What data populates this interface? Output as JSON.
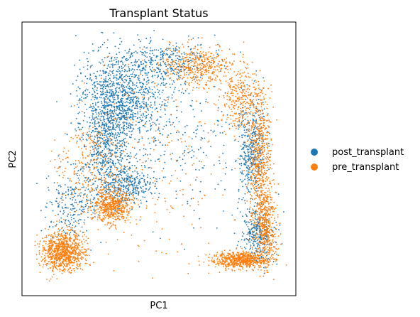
{
  "chart_data": {
    "type": "scatter",
    "title": "Transplant Status",
    "xlabel": "PC1",
    "ylabel": "PC2",
    "x_ticks": false,
    "y_ticks": false,
    "legend_position": "right",
    "series": [
      {
        "name": "post_transplant",
        "color": "#1f77b4",
        "clusters": [
          {
            "cx": 0.31,
            "cy": 0.38,
            "sx": 0.05,
            "sy": 0.13,
            "n": 950
          },
          {
            "cx": 0.39,
            "cy": 0.28,
            "sx": 0.07,
            "sy": 0.07,
            "n": 650
          },
          {
            "cx": 0.38,
            "cy": 0.6,
            "sx": 0.05,
            "sy": 0.04,
            "n": 350
          },
          {
            "cx": 0.18,
            "cy": 0.67,
            "sx": 0.045,
            "sy": 0.06,
            "n": 230
          },
          {
            "cx": 0.5,
            "cy": 0.15,
            "sx": 0.09,
            "sy": 0.04,
            "n": 380
          },
          {
            "cx": 0.84,
            "cy": 0.46,
            "sx": 0.025,
            "sy": 0.09,
            "n": 420
          },
          {
            "cx": 0.86,
            "cy": 0.78,
            "sx": 0.03,
            "sy": 0.05,
            "n": 330
          },
          {
            "cx": 0.57,
            "cy": 0.42,
            "sx": 0.13,
            "sy": 0.15,
            "n": 260
          }
        ]
      },
      {
        "name": "pre_transplant",
        "color": "#ff7f0e",
        "clusters": [
          {
            "cx": 0.15,
            "cy": 0.84,
            "sx": 0.04,
            "sy": 0.035,
            "n": 900
          },
          {
            "cx": 0.33,
            "cy": 0.67,
            "sx": 0.035,
            "sy": 0.03,
            "n": 550
          },
          {
            "cx": 0.8,
            "cy": 0.87,
            "sx": 0.05,
            "sy": 0.015,
            "n": 650
          },
          {
            "cx": 0.89,
            "cy": 0.75,
            "sx": 0.02,
            "sy": 0.07,
            "n": 420
          },
          {
            "cx": 0.87,
            "cy": 0.52,
            "sx": 0.02,
            "sy": 0.12,
            "n": 550
          },
          {
            "cx": 0.64,
            "cy": 0.16,
            "sx": 0.06,
            "sy": 0.04,
            "n": 420
          },
          {
            "cx": 0.8,
            "cy": 0.28,
            "sx": 0.04,
            "sy": 0.06,
            "n": 330
          },
          {
            "cx": 0.24,
            "cy": 0.52,
            "sx": 0.06,
            "sy": 0.1,
            "n": 260
          },
          {
            "cx": 0.48,
            "cy": 0.55,
            "sx": 0.12,
            "sy": 0.2,
            "n": 200
          }
        ]
      }
    ]
  }
}
